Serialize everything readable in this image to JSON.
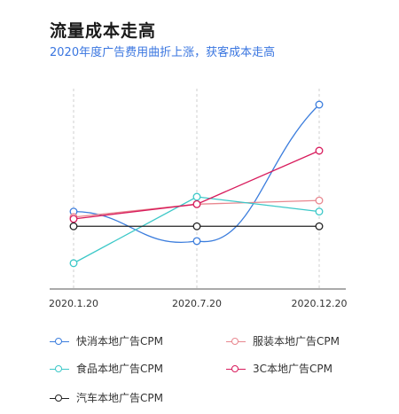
{
  "header": {
    "title": "流量成本走高",
    "subtitle": "2020年度广告费用曲折上涨，获客成本走高"
  },
  "chart_data": {
    "type": "line",
    "title": "流量成本走高",
    "subtitle": "2020年度广告费用曲折上涨，获客成本走高",
    "xlabel": "",
    "ylabel": "",
    "categories": [
      "2020.1.20",
      "2020.7.20",
      "2020.12.20"
    ],
    "ylim": [
      0,
      100
    ],
    "grid": "vertical dashed",
    "legend_position": "bottom",
    "series": [
      {
        "name": "快消本地广告CPM",
        "color": "#3b7ddd",
        "values": [
          42,
          26,
          100
        ],
        "curve": "smooth"
      },
      {
        "name": "服装本地广告CPM",
        "color": "#e8878f",
        "values": [
          39,
          46,
          48
        ]
      },
      {
        "name": "食品本地广告CPM",
        "color": "#3cc8c8",
        "values": [
          14,
          50,
          42
        ]
      },
      {
        "name": "3C本地广告CPM",
        "color": "#d81b5c",
        "values": [
          38,
          46,
          75
        ]
      },
      {
        "name": "汽车本地广告CPM",
        "color": "#222222",
        "values": [
          34,
          34,
          34
        ]
      }
    ]
  }
}
